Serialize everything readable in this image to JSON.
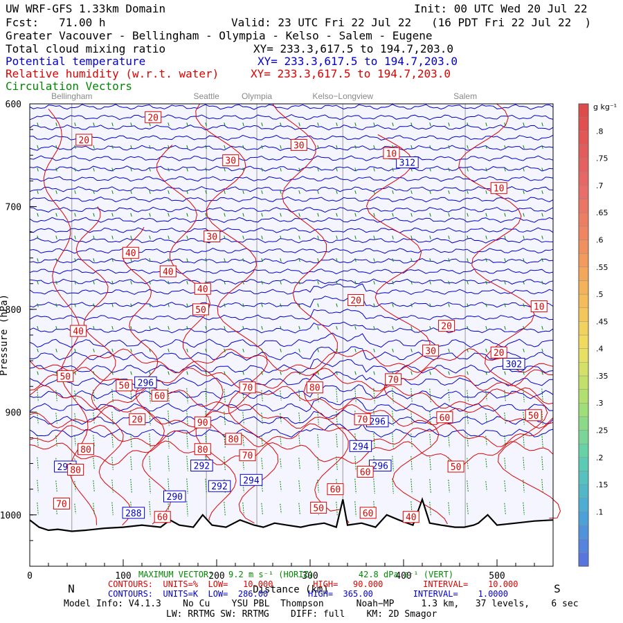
{
  "header": {
    "model_title": "UW WRF-GFS 1.33km Domain",
    "init": "Init: 00 UTC Wed 20 Jul 22",
    "fcst": "Fcst:   71.00 h",
    "valid": "Valid: 23 UTC Fri 22 Jul 22   (16 PDT Fri 22 Jul 22  )",
    "route": "Greater Vacouver - Bellingham - Olympia - Kelso - Salem - Eugene",
    "fields": [
      {
        "name": "Total cloud mixing ratio",
        "xy": "XY= 233.3,617.5 to 194.7,203.0",
        "color": "#000000"
      },
      {
        "name": "Potential temperature",
        "xy": "XY= 233.3,617.5 to 194.7,203.0",
        "color": "#0000cc"
      },
      {
        "name": "Relative humidity (w.r.t. water)",
        "xy": "XY= 233.3,617.5 to 194.7,203.0",
        "color": "#dd0000"
      },
      {
        "name": "Circulation Vectors",
        "xy": "",
        "color": "#008800"
      }
    ]
  },
  "chart_data": {
    "type": "cross-section",
    "x_range": [
      0,
      560
    ],
    "x_ticks": [
      0,
      100,
      200,
      300,
      400,
      500
    ],
    "x_ticks_minor_step": 20,
    "y_range_hpa": [
      600,
      1050
    ],
    "y_ticks": [
      600,
      700,
      800,
      900,
      1000
    ],
    "y_tick_labels": [
      "600",
      "700",
      "800",
      "900",
      "1000"
    ],
    "ylabel": "Pressure (hPa)",
    "xlabel": "Distance (km)",
    "direction_left": "N",
    "direction_right": "S",
    "cities": [
      {
        "name": "Bellingham",
        "km": 45
      },
      {
        "name": "Seattle",
        "km": 189
      },
      {
        "name": "Olympia",
        "km": 243
      },
      {
        "name": "Kelso−Longview",
        "km": 335
      },
      {
        "name": "Salem",
        "km": 466
      }
    ],
    "terrain_hpa": [
      [
        0,
        1005
      ],
      [
        10,
        1012
      ],
      [
        20,
        1015
      ],
      [
        30,
        1014
      ],
      [
        45,
        1016
      ],
      [
        60,
        1015
      ],
      [
        80,
        1013
      ],
      [
        100,
        1012
      ],
      [
        120,
        1010
      ],
      [
        140,
        1012
      ],
      [
        150,
        1005
      ],
      [
        160,
        1010
      ],
      [
        175,
        1012
      ],
      [
        185,
        1000
      ],
      [
        195,
        1010
      ],
      [
        210,
        1012
      ],
      [
        225,
        1005
      ],
      [
        240,
        1010
      ],
      [
        250,
        1012
      ],
      [
        262,
        1008
      ],
      [
        275,
        1010
      ],
      [
        290,
        1012
      ],
      [
        300,
        1010
      ],
      [
        315,
        1008
      ],
      [
        328,
        1012
      ],
      [
        335,
        985
      ],
      [
        340,
        1010
      ],
      [
        355,
        1008
      ],
      [
        370,
        1012
      ],
      [
        382,
        1000
      ],
      [
        395,
        1005
      ],
      [
        410,
        1010
      ],
      [
        420,
        985
      ],
      [
        428,
        1008
      ],
      [
        440,
        1010
      ],
      [
        455,
        1012
      ],
      [
        465,
        1012
      ],
      [
        475,
        1010
      ],
      [
        480,
        1008
      ],
      [
        490,
        1000
      ],
      [
        500,
        1010
      ],
      [
        520,
        1008
      ],
      [
        540,
        1006
      ],
      [
        560,
        1005
      ]
    ],
    "theta_labels": [
      {
        "value": "312",
        "km": 404,
        "hpa": 657
      },
      {
        "value": "302",
        "km": 518,
        "hpa": 853
      },
      {
        "value": "296",
        "km": 124,
        "hpa": 871
      },
      {
        "value": "296",
        "km": 372,
        "hpa": 909
      },
      {
        "value": "294",
        "km": 354,
        "hpa": 933
      },
      {
        "value": "296",
        "km": 375,
        "hpa": 952
      },
      {
        "value": "294",
        "km": 237,
        "hpa": 966
      },
      {
        "value": "292",
        "km": 184,
        "hpa": 952
      },
      {
        "value": "292",
        "km": 203,
        "hpa": 972
      },
      {
        "value": "291",
        "km": 38,
        "hpa": 953
      },
      {
        "value": "290",
        "km": 155,
        "hpa": 982
      },
      {
        "value": "288",
        "km": 111,
        "hpa": 998
      }
    ],
    "rh_labels": [
      {
        "value": "20",
        "km": 132,
        "hpa": 613
      },
      {
        "value": "20",
        "km": 58,
        "hpa": 635
      },
      {
        "value": "30",
        "km": 215,
        "hpa": 655
      },
      {
        "value": "30",
        "km": 288,
        "hpa": 640
      },
      {
        "value": "10",
        "km": 387,
        "hpa": 648
      },
      {
        "value": "10",
        "km": 502,
        "hpa": 682
      },
      {
        "value": "30",
        "km": 195,
        "hpa": 729
      },
      {
        "value": "40",
        "km": 108,
        "hpa": 745
      },
      {
        "value": "40",
        "km": 148,
        "hpa": 763
      },
      {
        "value": "40",
        "km": 185,
        "hpa": 780
      },
      {
        "value": "50",
        "km": 183,
        "hpa": 800
      },
      {
        "value": "20",
        "km": 349,
        "hpa": 791
      },
      {
        "value": "10",
        "km": 545,
        "hpa": 797
      },
      {
        "value": "40",
        "km": 52,
        "hpa": 821
      },
      {
        "value": "20",
        "km": 446,
        "hpa": 816
      },
      {
        "value": "30",
        "km": 429,
        "hpa": 840
      },
      {
        "value": "20",
        "km": 502,
        "hpa": 842
      },
      {
        "value": "50",
        "km": 38,
        "hpa": 865
      },
      {
        "value": "50",
        "km": 101,
        "hpa": 874
      },
      {
        "value": "60",
        "km": 139,
        "hpa": 884
      },
      {
        "value": "70",
        "km": 233,
        "hpa": 876
      },
      {
        "value": "80",
        "km": 305,
        "hpa": 876
      },
      {
        "value": "70",
        "km": 389,
        "hpa": 868
      },
      {
        "value": "20",
        "km": 115,
        "hpa": 907
      },
      {
        "value": "90",
        "km": 185,
        "hpa": 910
      },
      {
        "value": "70",
        "km": 356,
        "hpa": 907
      },
      {
        "value": "60",
        "km": 444,
        "hpa": 905
      },
      {
        "value": "50",
        "km": 539,
        "hpa": 903
      },
      {
        "value": "80",
        "km": 218,
        "hpa": 926
      },
      {
        "value": "80",
        "km": 60,
        "hpa": 936
      },
      {
        "value": "80",
        "km": 185,
        "hpa": 936
      },
      {
        "value": "70",
        "km": 233,
        "hpa": 942
      },
      {
        "value": "80",
        "km": 49,
        "hpa": 956
      },
      {
        "value": "50",
        "km": 456,
        "hpa": 953
      },
      {
        "value": "60",
        "km": 359,
        "hpa": 958
      },
      {
        "value": "60",
        "km": 327,
        "hpa": 975
      },
      {
        "value": "70",
        "km": 34,
        "hpa": 989
      },
      {
        "value": "50",
        "km": 309,
        "hpa": 993
      },
      {
        "value": "40",
        "km": 408,
        "hpa": 1002
      },
      {
        "value": "60",
        "km": 142,
        "hpa": 1002
      },
      {
        "value": "60",
        "km": 362,
        "hpa": 998
      }
    ],
    "colorbar": {
      "unit": "g kg⁻¹",
      "labels": [
        ".8",
        ".75",
        ".7",
        ".65",
        ".6",
        ".55",
        ".5",
        ".45",
        ".4",
        ".35",
        ".3",
        ".25",
        ".2",
        ".15",
        ".1"
      ],
      "values": [
        0.8,
        0.75,
        0.7,
        0.65,
        0.6,
        0.55,
        0.5,
        0.45,
        0.4,
        0.35,
        0.3,
        0.25,
        0.2,
        0.15,
        0.1
      ],
      "range": [
        0,
        0.85
      ]
    }
  },
  "footer": {
    "vector_note": "MAXIMUM VECTOR:   9.2 m s⁻¹ (HORIZ)         42.8 dPa s⁻¹ (VERT)",
    "rh_contours": "CONTOURS:  UNITS=%  LOW=   10.000        HIGH=   90.000        INTERVAL=    10.000",
    "theta_contours": "CONTOURS:  UNITS=K  LOW=  286.00        HIGH=  365.00        INTERVAL=    1.0000",
    "model_info": "Model Info: V4.1.3    No Cu    YSU PBL  Thompson      Noah−MP     1.3 km,   37 levels,    6 sec",
    "physics": "LW: RRTMG SW: RRTMG    DIFF: full    KM: 2D Smagor"
  }
}
